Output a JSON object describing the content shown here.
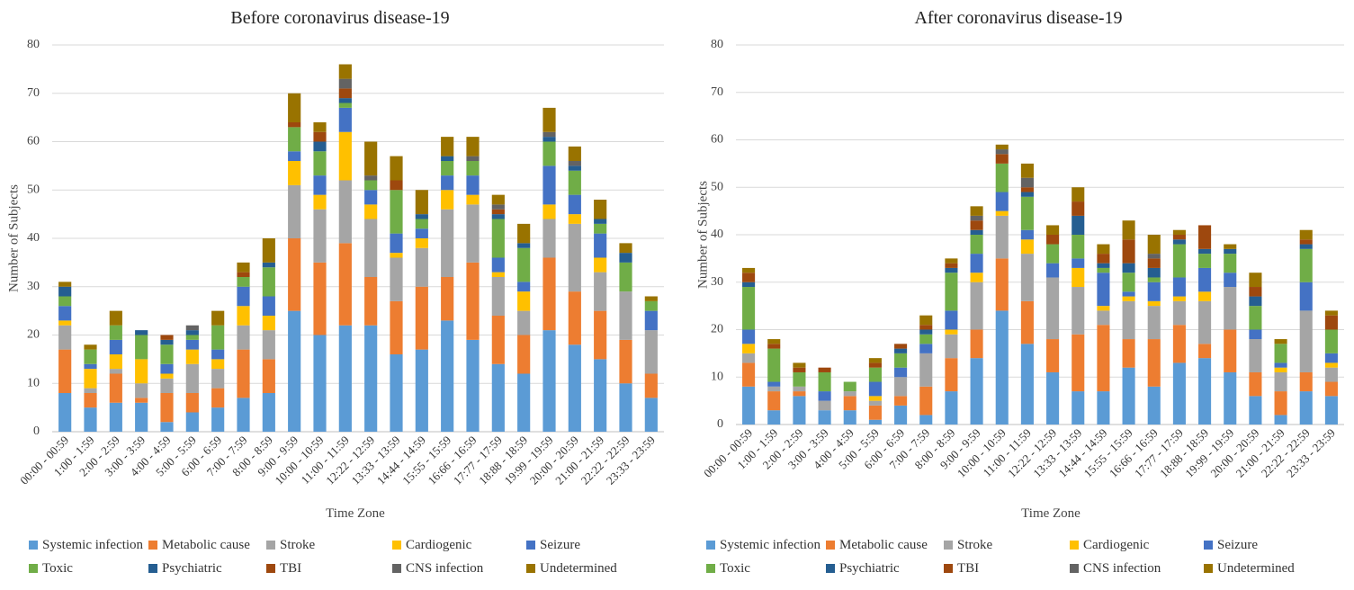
{
  "series_meta": [
    {
      "name": "Systemic infection",
      "color": "#5B9BD5"
    },
    {
      "name": "Metabolic cause",
      "color": "#ED7D31"
    },
    {
      "name": "Stroke",
      "color": "#A5A5A5"
    },
    {
      "name": "Cardiogenic",
      "color": "#FFC000"
    },
    {
      "name": "Seizure",
      "color": "#4472C4"
    },
    {
      "name": "Toxic",
      "color": "#70AD47"
    },
    {
      "name": "Psychiatric",
      "color": "#255E91"
    },
    {
      "name": "TBI",
      "color": "#9E480E"
    },
    {
      "name": "CNS infection",
      "color": "#636363"
    },
    {
      "name": "Undetermined",
      "color": "#997300"
    }
  ],
  "chart_data": [
    {
      "type": "bar",
      "stacked": true,
      "title": "Before coronavirus disease-19",
      "xlabel": "Time Zone",
      "ylabel": "Number of Subjects",
      "ylim": [
        0,
        80
      ],
      "yticks": [
        0,
        10,
        20,
        30,
        40,
        50,
        60,
        70,
        80
      ],
      "grid": true,
      "legend_position": "bottom",
      "categories": [
        "00:00 - 00:59",
        "1:00 - 1:59",
        "2:00 - 2:59",
        "3:00 - 3:59",
        "4:00 - 4:59",
        "5:00 - 5:59",
        "6:00 - 6:59",
        "7:00 - 7:59",
        "8:00 - 8:59",
        "9:00 - 9:59",
        "10:00 - 10:59",
        "11:00 - 11:59",
        "12:22 - 12:59",
        "13:33 - 13:59",
        "14:44 - 14:59",
        "15:55 - 15:59",
        "16:66 - 16:59",
        "17:77 - 17:59",
        "18:88 - 18:59",
        "19:99 - 19:59",
        "20:00 - 20:59",
        "21:00 - 21:59",
        "22:22 - 22:59",
        "23:33 - 23:59"
      ],
      "series": [
        {
          "name": "Systemic infection",
          "values": [
            8,
            5,
            6,
            6,
            2,
            4,
            5,
            7,
            8,
            25,
            20,
            22,
            22,
            16,
            17,
            23,
            19,
            14,
            12,
            21,
            18,
            15,
            10,
            7
          ]
        },
        {
          "name": "Metabolic cause",
          "values": [
            9,
            3,
            6,
            1,
            6,
            4,
            4,
            10,
            7,
            15,
            15,
            17,
            10,
            11,
            13,
            9,
            16,
            10,
            8,
            15,
            11,
            10,
            9,
            5
          ]
        },
        {
          "name": "Stroke",
          "values": [
            5,
            1,
            1,
            3,
            3,
            6,
            4,
            5,
            6,
            11,
            11,
            13,
            12,
            9,
            8,
            14,
            12,
            8,
            5,
            8,
            14,
            8,
            10,
            9
          ]
        },
        {
          "name": "Cardiogenic",
          "values": [
            1,
            4,
            3,
            5,
            1,
            3,
            2,
            4,
            3,
            5,
            3,
            10,
            3,
            1,
            2,
            4,
            2,
            1,
            4,
            3,
            2,
            3,
            0,
            0
          ]
        },
        {
          "name": "Seizure",
          "values": [
            3,
            1,
            3,
            0,
            2,
            2,
            2,
            4,
            4,
            2,
            4,
            5,
            3,
            4,
            2,
            3,
            4,
            3,
            2,
            8,
            4,
            5,
            0,
            4
          ]
        },
        {
          "name": "Toxic",
          "values": [
            2,
            3,
            3,
            5,
            4,
            1,
            5,
            2,
            6,
            5,
            5,
            1,
            2,
            9,
            2,
            3,
            3,
            8,
            7,
            5,
            5,
            2,
            6,
            2
          ]
        },
        {
          "name": "Psychiatric",
          "values": [
            2,
            0,
            0,
            1,
            1,
            1,
            0,
            0,
            1,
            0,
            2,
            1,
            0,
            0,
            1,
            1,
            0,
            1,
            1,
            1,
            1,
            1,
            2,
            0
          ]
        },
        {
          "name": "TBI",
          "values": [
            0,
            0,
            0,
            0,
            1,
            0,
            0,
            1,
            0,
            1,
            2,
            2,
            0,
            2,
            0,
            0,
            0,
            1,
            0,
            0,
            0,
            0,
            0,
            0
          ]
        },
        {
          "name": "CNS infection",
          "values": [
            0,
            0,
            0,
            0,
            0,
            1,
            0,
            0,
            0,
            0,
            0,
            2,
            1,
            0,
            0,
            0,
            1,
            1,
            0,
            1,
            1,
            0,
            0,
            0
          ]
        },
        {
          "name": "Undetermined",
          "values": [
            1,
            1,
            3,
            0,
            0,
            0,
            3,
            2,
            5,
            6,
            2,
            3,
            7,
            5,
            5,
            4,
            4,
            2,
            4,
            5,
            3,
            4,
            2,
            1
          ]
        }
      ]
    },
    {
      "type": "bar",
      "stacked": true,
      "title": "After coronavirus disease-19",
      "xlabel": "Time Zone",
      "ylabel": "Number of Subjects",
      "ylim": [
        0,
        80
      ],
      "yticks": [
        0,
        10,
        20,
        30,
        40,
        50,
        60,
        70,
        80
      ],
      "grid": true,
      "legend_position": "bottom",
      "categories": [
        "00:00 - 00:59",
        "1:00 - 1:59",
        "2:00 - 2:59",
        "3:00 - 3:59",
        "4:00 - 4:59",
        "5:00 - 5:59",
        "6:00 - 6:59",
        "7:00 - 7:59",
        "8:00 - 8:59",
        "9:00 - 9:59",
        "10:00 - 10:59",
        "11:00 - 11:59",
        "12:22 - 12:59",
        "13:33 - 13:59",
        "14:44 - 14:59",
        "15:55 - 15:59",
        "16:66 - 16:59",
        "17:77 - 17:59",
        "18:88 - 18:59",
        "19:99 - 19:59",
        "20:00 - 20:59",
        "21:00 - 21:59",
        "22:22 - 22:59",
        "23:33 - 23:59"
      ],
      "series": [
        {
          "name": "Systemic infection",
          "values": [
            8,
            3,
            6,
            3,
            3,
            1,
            4,
            2,
            7,
            14,
            24,
            17,
            11,
            7,
            7,
            12,
            8,
            13,
            14,
            11,
            6,
            2,
            7,
            6
          ]
        },
        {
          "name": "Metabolic cause",
          "values": [
            5,
            4,
            1,
            0,
            3,
            3,
            2,
            6,
            7,
            6,
            11,
            9,
            7,
            12,
            14,
            6,
            10,
            8,
            3,
            9,
            5,
            5,
            4,
            3
          ]
        },
        {
          "name": "Stroke",
          "values": [
            2,
            1,
            1,
            2,
            1,
            1,
            4,
            7,
            5,
            10,
            9,
            10,
            13,
            10,
            3,
            8,
            7,
            5,
            9,
            9,
            7,
            4,
            13,
            3
          ]
        },
        {
          "name": "Cardiogenic",
          "values": [
            2,
            0,
            0,
            0,
            0,
            1,
            0,
            0,
            1,
            2,
            1,
            3,
            0,
            4,
            1,
            1,
            1,
            1,
            2,
            0,
            0,
            1,
            0,
            1
          ]
        },
        {
          "name": "Seizure",
          "values": [
            3,
            1,
            0,
            2,
            0,
            3,
            2,
            2,
            4,
            4,
            4,
            2,
            3,
            2,
            7,
            1,
            4,
            4,
            5,
            3,
            2,
            1,
            6,
            2
          ]
        },
        {
          "name": "Toxic",
          "values": [
            9,
            7,
            3,
            4,
            2,
            3,
            3,
            2,
            8,
            4,
            6,
            7,
            4,
            5,
            1,
            4,
            1,
            7,
            3,
            4,
            5,
            4,
            7,
            5
          ]
        },
        {
          "name": "Psychiatric",
          "values": [
            1,
            0,
            0,
            0,
            0,
            0,
            1,
            1,
            1,
            1,
            0,
            1,
            0,
            4,
            1,
            2,
            2,
            1,
            1,
            1,
            2,
            0,
            1,
            0
          ]
        },
        {
          "name": "TBI",
          "values": [
            2,
            1,
            1,
            1,
            0,
            1,
            1,
            1,
            1,
            2,
            2,
            1,
            2,
            3,
            2,
            5,
            2,
            1,
            5,
            0,
            2,
            0,
            1,
            3
          ]
        },
        {
          "name": "CNS infection",
          "values": [
            0,
            0,
            0,
            0,
            0,
            0,
            0,
            0,
            0,
            1,
            1,
            2,
            0,
            0,
            0,
            0,
            1,
            0,
            0,
            0,
            0,
            0,
            0,
            0
          ]
        },
        {
          "name": "Undetermined",
          "values": [
            1,
            1,
            1,
            0,
            0,
            1,
            0,
            2,
            1,
            2,
            1,
            3,
            2,
            3,
            2,
            4,
            4,
            1,
            0,
            1,
            3,
            1,
            2,
            1
          ]
        }
      ]
    }
  ]
}
